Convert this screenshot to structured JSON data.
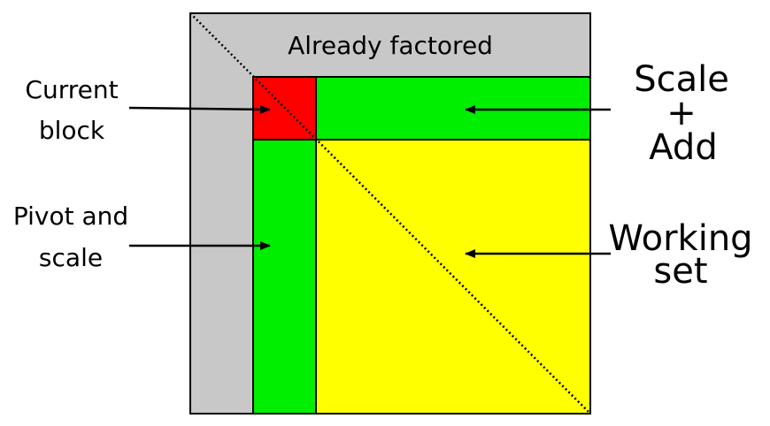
{
  "labels": {
    "already_factored": "Already factored",
    "current_block": [
      "Current",
      "block"
    ],
    "pivot_and_scale": [
      "Pivot and",
      "scale"
    ],
    "scale_add": [
      "Scale",
      "+",
      "Add"
    ],
    "working_set": [
      "Working",
      "set"
    ]
  },
  "colors": {
    "already_factored": "#c8c8c8",
    "current_block": "#ff0000",
    "panel": "#00ee00",
    "working_set": "#ffff00",
    "outline": "#000000"
  }
}
